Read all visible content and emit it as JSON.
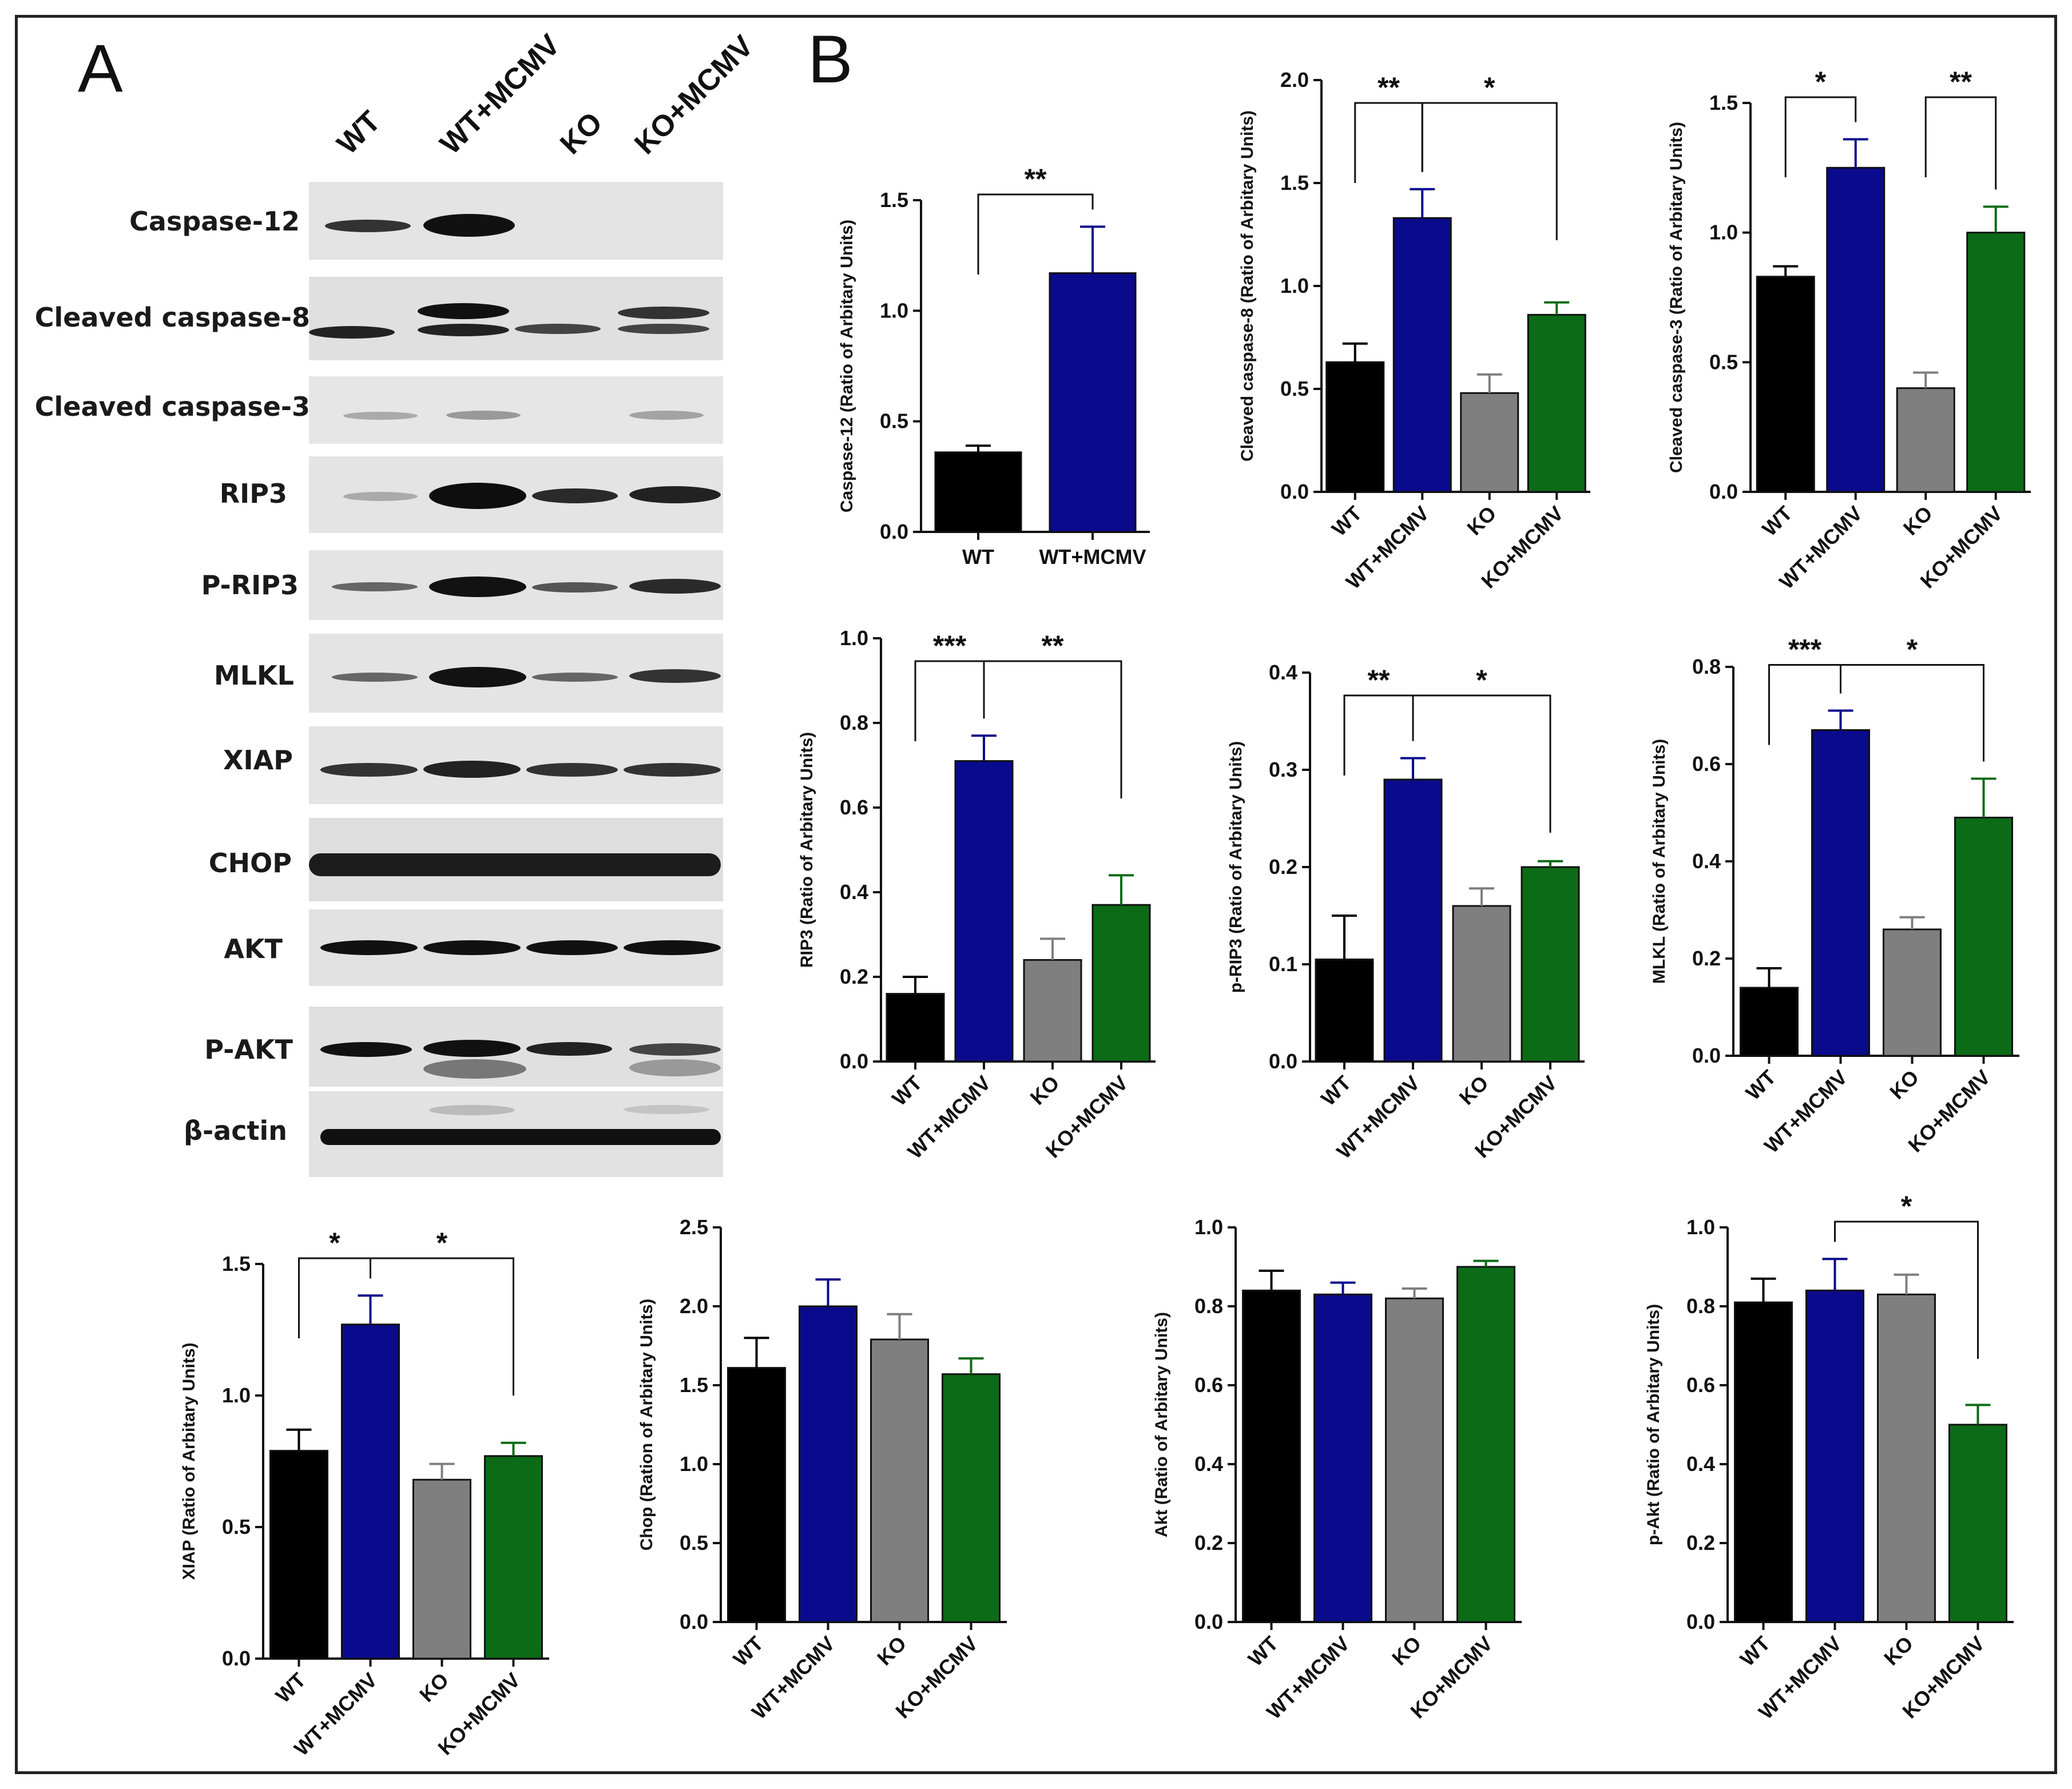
{
  "panels": {
    "a": "A",
    "b": "B"
  },
  "western_blot": {
    "lanes": [
      "WT",
      "WT+MCMV",
      "KO",
      "KO+MCMV"
    ],
    "rows": [
      {
        "label": "Caspase-12"
      },
      {
        "label": "Cleaved caspase-8"
      },
      {
        "label": "Cleaved caspase-3"
      },
      {
        "label": "RIP3"
      },
      {
        "label": "P-RIP3"
      },
      {
        "label": "MLKL"
      },
      {
        "label": "XIAP"
      },
      {
        "label": "CHOP"
      },
      {
        "label": "AKT"
      },
      {
        "label": "P-AKT"
      },
      {
        "label": "β-actin"
      }
    ]
  },
  "colors": {
    "WT": "#000000",
    "WT+MCMV": "#0a0a8c",
    "KO": "#7f7f7f",
    "KO+MCMV": "#0c6b16"
  },
  "chart_data": [
    {
      "id": "casp12",
      "type": "bar",
      "ylabel": "Caspase-12 (Ratio of Arbitary Units)",
      "categories": [
        "WT",
        "WT+MCMV"
      ],
      "values": [
        0.36,
        1.17
      ],
      "errors": [
        0.03,
        0.21
      ],
      "ylim": [
        0,
        1.5
      ],
      "yticks": [
        "0.0",
        "0.5",
        "1.0",
        "1.5"
      ],
      "rotate": false,
      "sig": [
        {
          "from": 0,
          "to": 1,
          "label": "**"
        }
      ]
    },
    {
      "id": "casp8",
      "type": "bar",
      "ylabel": "Cleaved caspase-8 (Ratio of Arbitary Units)",
      "categories": [
        "WT",
        "WT+MCMV",
        "KO",
        "KO+MCMV"
      ],
      "values": [
        0.63,
        1.33,
        0.48,
        0.86
      ],
      "errors": [
        0.09,
        0.14,
        0.09,
        0.06
      ],
      "ylim": [
        0,
        2.0
      ],
      "yticks": [
        "0.0",
        "0.5",
        "1.0",
        "1.5",
        "2.0"
      ],
      "rotate": true,
      "sig": [
        {
          "from": 0,
          "to": 1,
          "label": "**"
        },
        {
          "from": 1,
          "to": 3,
          "label": "*"
        }
      ]
    },
    {
      "id": "casp3",
      "type": "bar",
      "ylabel": "Cleaved caspase-3 (Ratio of Arbitary Units)",
      "categories": [
        "WT",
        "WT+MCMV",
        "KO",
        "KO+MCMV"
      ],
      "values": [
        0.83,
        1.25,
        0.4,
        1.0
      ],
      "errors": [
        0.04,
        0.11,
        0.06,
        0.1
      ],
      "ylim": [
        0,
        1.5
      ],
      "yticks": [
        "0.0",
        "0.5",
        "1.0",
        "1.5"
      ],
      "rotate": true,
      "sig": [
        {
          "from": 0,
          "to": 1,
          "label": "*"
        },
        {
          "from": 2,
          "to": 3,
          "label": "**"
        }
      ]
    },
    {
      "id": "rip3",
      "type": "bar",
      "ylabel": "RIP3 (Ratio of Arbitary Units)",
      "categories": [
        "WT",
        "WT+MCMV",
        "KO",
        "KO+MCMV"
      ],
      "values": [
        0.16,
        0.71,
        0.24,
        0.37
      ],
      "errors": [
        0.04,
        0.06,
        0.05,
        0.07
      ],
      "ylim": [
        0,
        1.0
      ],
      "yticks": [
        "0.0",
        "0.2",
        "0.4",
        "0.6",
        "0.8",
        "1.0"
      ],
      "rotate": true,
      "sig": [
        {
          "from": 0,
          "to": 1,
          "label": "***"
        },
        {
          "from": 1,
          "to": 3,
          "label": "**"
        }
      ]
    },
    {
      "id": "prip3",
      "type": "bar",
      "ylabel": "p-RIP3 (Ratio of Arbitary Units)",
      "categories": [
        "WT",
        "WT+MCMV",
        "KO",
        "KO+MCMV"
      ],
      "values": [
        0.105,
        0.29,
        0.16,
        0.2
      ],
      "errors": [
        0.045,
        0.022,
        0.018,
        0.006
      ],
      "ylim": [
        0,
        0.4
      ],
      "yticks": [
        "0.0",
        "0.1",
        "0.2",
        "0.3",
        "0.4"
      ],
      "rotate": true,
      "sig": [
        {
          "from": 0,
          "to": 1,
          "label": "**"
        },
        {
          "from": 1,
          "to": 3,
          "label": "*"
        }
      ]
    },
    {
      "id": "mlkl",
      "type": "bar",
      "ylabel": "MLKL (Ratio of Arbitary Units)",
      "categories": [
        "WT",
        "WT+MCMV",
        "KO",
        "KO+MCMV"
      ],
      "values": [
        0.14,
        0.67,
        0.26,
        0.49
      ],
      "errors": [
        0.04,
        0.04,
        0.025,
        0.08
      ],
      "ylim": [
        0,
        0.8
      ],
      "yticks": [
        "0.0",
        "0.2",
        "0.4",
        "0.6",
        "0.8"
      ],
      "rotate": true,
      "sig": [
        {
          "from": 0,
          "to": 1,
          "label": "***"
        },
        {
          "from": 1,
          "to": 3,
          "label": "*"
        }
      ]
    },
    {
      "id": "xiap",
      "type": "bar",
      "ylabel": "XIAP (Ratio of Arbitary Units)",
      "categories": [
        "WT",
        "WT+MCMV",
        "KO",
        "KO+MCMV"
      ],
      "values": [
        0.79,
        1.27,
        0.68,
        0.77
      ],
      "errors": [
        0.08,
        0.11,
        0.06,
        0.05
      ],
      "ylim": [
        0,
        1.5
      ],
      "yticks": [
        "0.0",
        "0.5",
        "1.0",
        "1.5"
      ],
      "rotate": true,
      "sig": [
        {
          "from": 0,
          "to": 1,
          "label": "*"
        },
        {
          "from": 1,
          "to": 3,
          "label": "*"
        }
      ]
    },
    {
      "id": "chop",
      "type": "bar",
      "ylabel": "Chop (Ration of Arbitary Units)",
      "categories": [
        "WT",
        "WT+MCMV",
        "KO",
        "KO+MCMV"
      ],
      "values": [
        1.61,
        2.0,
        1.79,
        1.57
      ],
      "errors": [
        0.19,
        0.17,
        0.16,
        0.1
      ],
      "ylim": [
        0,
        2.5
      ],
      "yticks": [
        "0.0",
        "0.5",
        "1.0",
        "1.5",
        "2.0",
        "2.5"
      ],
      "rotate": true,
      "sig": []
    },
    {
      "id": "akt",
      "type": "bar",
      "ylabel": "Akt (Ratio of Arbitary Units)",
      "categories": [
        "WT",
        "WT+MCMV",
        "KO",
        "KO+MCMV"
      ],
      "values": [
        0.84,
        0.83,
        0.82,
        0.9
      ],
      "errors": [
        0.05,
        0.03,
        0.025,
        0.015
      ],
      "ylim": [
        0,
        1.0
      ],
      "yticks": [
        "0.0",
        "0.2",
        "0.4",
        "0.6",
        "0.8",
        "1.0"
      ],
      "rotate": true,
      "sig": []
    },
    {
      "id": "pakt",
      "type": "bar",
      "ylabel": "p-Akt (Ratio of Arbitary Units)",
      "categories": [
        "WT",
        "WT+MCMV",
        "KO",
        "KO+MCMV"
      ],
      "values": [
        0.81,
        0.84,
        0.83,
        0.5
      ],
      "errors": [
        0.06,
        0.08,
        0.05,
        0.05
      ],
      "ylim": [
        0,
        1.0
      ],
      "yticks": [
        "0.0",
        "0.2",
        "0.4",
        "0.6",
        "0.8",
        "1.0"
      ],
      "rotate": true,
      "sig": [
        {
          "from": 1,
          "to": 3,
          "label": "*"
        }
      ]
    }
  ]
}
